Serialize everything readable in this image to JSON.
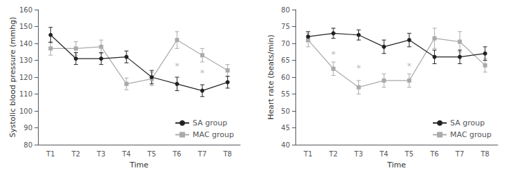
{
  "chart_data": [
    {
      "type": "line",
      "xlabel": "Time",
      "ylabel": "Systolic blood pressure (mmhg)",
      "categories": [
        "T1",
        "T2",
        "T3",
        "T4",
        "T5",
        "T6",
        "T7",
        "T8"
      ],
      "series": [
        {
          "name": "MAC group",
          "color": "#aaaaaa",
          "marker": "square",
          "values": [
            137,
            137,
            138,
            116,
            119,
            142,
            133,
            124
          ],
          "errors": [
            4,
            4,
            4,
            3.5,
            4,
            5,
            4,
            3.5
          ]
        },
        {
          "name": "SA group",
          "color": "#222222",
          "marker": "circle",
          "values": [
            145,
            131,
            131,
            132,
            120,
            116,
            112,
            117
          ],
          "errors": [
            4.5,
            3.5,
            3.5,
            3.5,
            4,
            4,
            3.5,
            3.5
          ]
        }
      ],
      "annotations": [
        {
          "text": "*",
          "x": "T6",
          "y": 124,
          "color": "#aaaaaa"
        },
        {
          "text": "*",
          "x": "T7",
          "y": 120,
          "color": "#aaaaaa"
        }
      ],
      "ylim": [
        80,
        160
      ],
      "yticks": [
        80,
        90,
        100,
        110,
        120,
        130,
        140,
        150,
        160
      ],
      "grid": false,
      "legend": "lower right"
    },
    {
      "type": "line",
      "xlabel": "Time",
      "ylabel": "Heart rate (beats/min)",
      "categories": [
        "T1",
        "T2",
        "T3",
        "T4",
        "T5",
        "T6",
        "T7",
        "T8"
      ],
      "series": [
        {
          "name": "MAC group",
          "color": "#aaaaaa",
          "marker": "square",
          "values": [
            71,
            62.5,
            57,
            59,
            59,
            71.5,
            70.5,
            63.5
          ],
          "errors": [
            2,
            2,
            2,
            2,
            2,
            3,
            3,
            2
          ]
        },
        {
          "name": "SA group",
          "color": "#222222",
          "marker": "circle",
          "values": [
            72,
            73,
            72.5,
            69,
            71,
            66,
            66,
            67
          ],
          "errors": [
            1.5,
            1.5,
            1.5,
            2,
            2,
            2,
            2,
            2
          ]
        }
      ],
      "annotations": [
        {
          "text": "*",
          "x": "T2",
          "y": 65.5,
          "color": "#aaaaaa"
        },
        {
          "text": "*",
          "x": "T3",
          "y": 61.5,
          "color": "#aaaaaa"
        },
        {
          "text": "*",
          "x": "T5",
          "y": 62,
          "color": "#aaaaaa"
        }
      ],
      "ylim": [
        40,
        80
      ],
      "yticks": [
        40,
        45,
        50,
        55,
        60,
        65,
        70,
        75,
        80
      ],
      "grid": false,
      "legend": "lower right"
    }
  ]
}
